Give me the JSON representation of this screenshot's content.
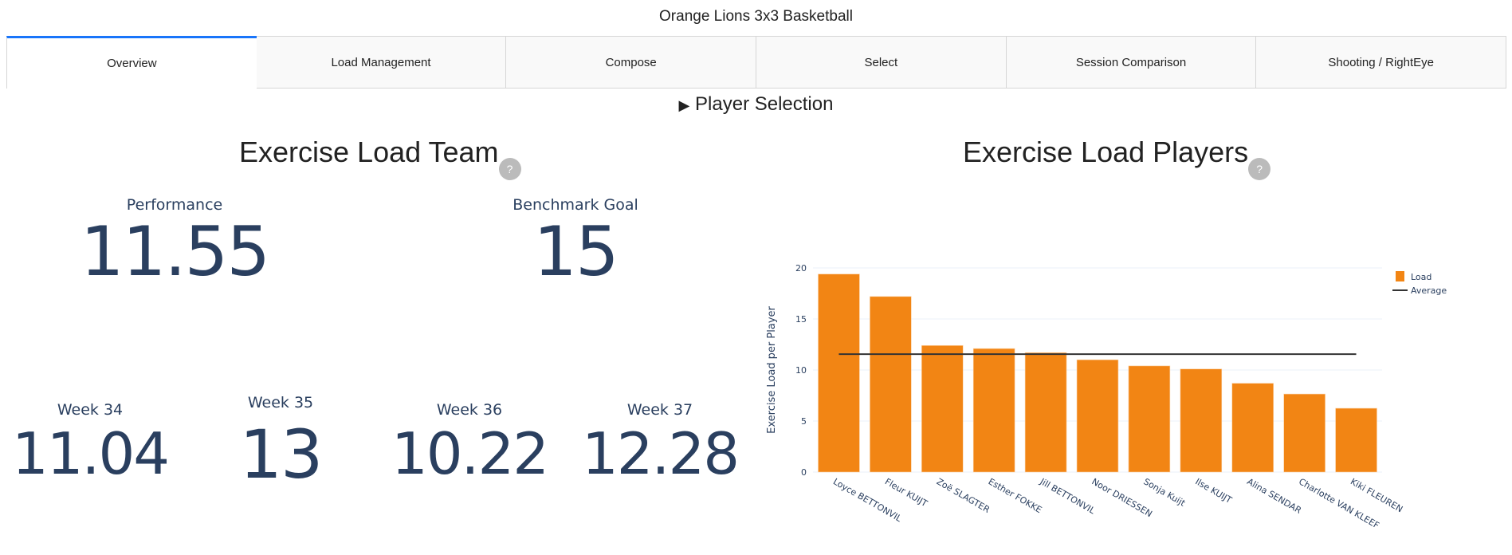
{
  "app_title": "Orange Lions 3x3 Basketball",
  "tabs": [
    {
      "label": "Overview",
      "active": true
    },
    {
      "label": "Load Management"
    },
    {
      "label": "Compose"
    },
    {
      "label": "Select"
    },
    {
      "label": "Session Comparison"
    },
    {
      "label": "Shooting / RightEye"
    }
  ],
  "player_selection": {
    "icon": "triangle-right-icon",
    "label": "Player Selection"
  },
  "team": {
    "title": "Exercise Load Team",
    "help": "?",
    "performance": {
      "label": "Performance",
      "value": "11.55"
    },
    "benchmark": {
      "label": "Benchmark Goal",
      "value": "15"
    },
    "weeks": [
      {
        "label": "Week 34",
        "value": "11.04"
      },
      {
        "label": "Week 35",
        "value": "13"
      },
      {
        "label": "Week 36",
        "value": "10.22"
      },
      {
        "label": "Week 37",
        "value": "12.28"
      }
    ]
  },
  "players": {
    "title": "Exercise Load Players",
    "help": "?"
  },
  "chart_data": {
    "type": "bar",
    "categories": [
      "Loyce BETTONVIL",
      "Fleur KUIJT",
      "Zoë SLAGTER",
      "Esther FOKKE",
      "Jill BETTONVIL",
      "Noor DRIESSEN",
      "Sonja Kuijt",
      "Ilse KUIJT",
      "Alina SENDAR",
      "Charlotte VAN KLEEF",
      "Kiki FLEUREN"
    ],
    "series": [
      {
        "name": "Load",
        "type": "bar",
        "values": [
          19.4,
          17.2,
          12.4,
          12.1,
          11.7,
          11.0,
          10.4,
          10.1,
          8.7,
          7.65,
          6.25
        ],
        "color": "#f28514"
      },
      {
        "name": "Average",
        "type": "line",
        "values": [
          11.55,
          11.55,
          11.55,
          11.55,
          11.55,
          11.55,
          11.55,
          11.55,
          11.55,
          11.55,
          11.55
        ],
        "color": "#333333"
      }
    ],
    "ylabel": "Exercise Load per Player",
    "xlabel": "",
    "ylim": [
      0,
      20
    ],
    "yticks": [
      0,
      5,
      10,
      15,
      20
    ],
    "grid": true,
    "legend": "top-right"
  }
}
